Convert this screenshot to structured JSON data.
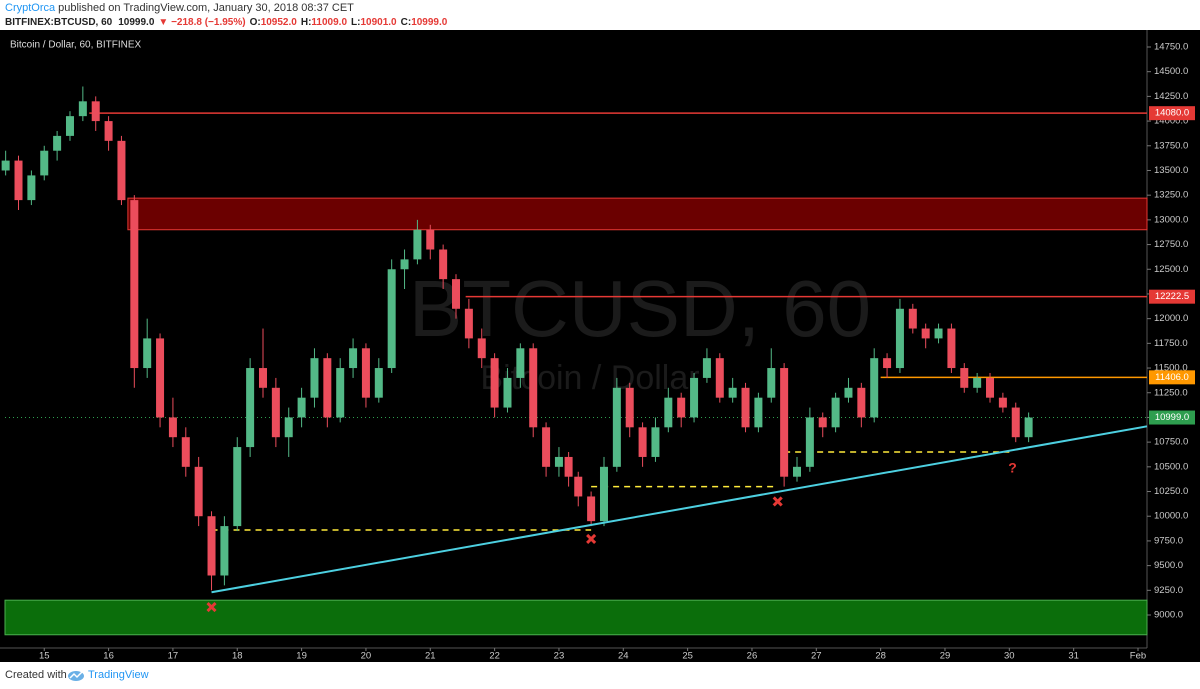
{
  "header": {
    "author": "CryptOrca",
    "published": "published on TradingView.com, January 30, 2018 08:37 CET",
    "symbol": "BITFINEX:BTCUSD, 60",
    "last": "10999.0",
    "change": "▼ −218.8 (−1.95%)",
    "ohlc": [
      {
        "label": "O:",
        "value": "10952.0"
      },
      {
        "label": "H:",
        "value": "11009.0"
      },
      {
        "label": "L:",
        "value": "10901.0"
      },
      {
        "label": "C:",
        "value": "10999.0"
      }
    ]
  },
  "chart_data": {
    "type": "candlestick",
    "title": "Bitcoin / Dollar, 60, BITFINEX",
    "watermark": "BTCUSD, 60",
    "watermark_sub": "Bitcoin / Dollar",
    "up_color": "#53b987",
    "down_color": "#eb4d5c",
    "x": [
      14.4,
      14.6,
      14.8,
      15.0,
      15.2,
      15.4,
      15.6,
      15.8,
      16.0,
      16.2,
      16.4,
      16.6,
      16.8,
      17.0,
      17.2,
      17.4,
      17.6,
      17.8,
      18.0,
      18.2,
      18.4,
      18.6,
      18.8,
      19.0,
      19.2,
      19.4,
      19.6,
      19.8,
      20.0,
      20.2,
      20.4,
      20.6,
      20.8,
      21.0,
      21.2,
      21.4,
      21.6,
      21.8,
      22.0,
      22.2,
      22.4,
      22.6,
      22.8,
      23.0,
      23.15,
      23.3,
      23.5,
      23.7,
      23.9,
      24.1,
      24.3,
      24.5,
      24.7,
      24.9,
      25.1,
      25.3,
      25.5,
      25.7,
      25.9,
      26.1,
      26.3,
      26.5,
      26.7,
      26.9,
      27.1,
      27.3,
      27.5,
      27.7,
      27.9,
      28.1,
      28.3,
      28.5,
      28.7,
      28.9,
      29.1,
      29.3,
      29.5,
      29.7,
      29.9,
      30.1,
      30.3
    ],
    "open": [
      13500,
      13600,
      13200,
      13450,
      13700,
      13850,
      14050,
      14200,
      14000,
      13800,
      13200,
      11500,
      11800,
      11000,
      10800,
      10500,
      10000,
      9400,
      9900,
      10700,
      11500,
      11300,
      10800,
      11000,
      11200,
      11600,
      11000,
      11500,
      11700,
      11200,
      11500,
      12500,
      12600,
      12900,
      12700,
      12400,
      12100,
      11800,
      11600,
      11100,
      11400,
      11700,
      10900,
      10500,
      10600,
      10400,
      10200,
      9950,
      10500,
      11300,
      10900,
      10600,
      10900,
      11200,
      11000,
      11400,
      11600,
      11200,
      11300,
      10900,
      11200,
      11500,
      10400,
      10500,
      11000,
      10900,
      11200,
      11300,
      11000,
      11600,
      11500,
      12100,
      11900,
      11800,
      11900,
      11500,
      11300,
      11400,
      11200,
      11100,
      10800
    ],
    "high": [
      13700,
      13650,
      13500,
      13750,
      13900,
      14100,
      14350,
      14250,
      14050,
      13850,
      13250,
      12000,
      11850,
      11200,
      10900,
      10600,
      10050,
      10000,
      10800,
      11600,
      11900,
      11400,
      11100,
      11300,
      11700,
      11650,
      11600,
      11800,
      11750,
      11600,
      12600,
      12700,
      13000,
      12950,
      12750,
      12450,
      12200,
      11900,
      11650,
      11500,
      11750,
      11750,
      10950,
      10700,
      10650,
      10450,
      10250,
      10600,
      11400,
      11350,
      10950,
      11000,
      11300,
      11250,
      11450,
      11700,
      11650,
      11400,
      11350,
      11250,
      11700,
      11550,
      10600,
      11100,
      11050,
      11250,
      11400,
      11350,
      11700,
      11650,
      12200,
      12150,
      11950,
      11950,
      11950,
      11550,
      11450,
      11450,
      11250,
      11150,
      11050
    ],
    "low": [
      13450,
      13100,
      13150,
      13400,
      13600,
      13800,
      14000,
      13900,
      13700,
      13150,
      11300,
      11400,
      10900,
      10700,
      10400,
      9900,
      9250,
      9300,
      9850,
      10600,
      11200,
      10700,
      10600,
      10900,
      11100,
      10900,
      10950,
      11400,
      11100,
      11150,
      11450,
      12300,
      12550,
      12600,
      12300,
      12000,
      11700,
      11500,
      11000,
      11050,
      11300,
      10800,
      10400,
      10400,
      10300,
      10100,
      9900,
      9900,
      10450,
      10800,
      10500,
      10550,
      10850,
      10900,
      10950,
      11350,
      11150,
      11150,
      10850,
      10850,
      11150,
      10300,
      10350,
      10450,
      10800,
      10850,
      11150,
      10900,
      10950,
      11400,
      11450,
      11850,
      11700,
      11750,
      11450,
      11250,
      11250,
      11150,
      11050,
      10750,
      10750
    ],
    "close": [
      13600,
      13200,
      13450,
      13700,
      13850,
      14050,
      14200,
      14000,
      13800,
      13200,
      11500,
      11800,
      11000,
      10800,
      10500,
      10000,
      9400,
      9900,
      10700,
      11500,
      11300,
      10800,
      11000,
      11200,
      11600,
      11000,
      11500,
      11700,
      11200,
      11500,
      12500,
      12600,
      12900,
      12700,
      12400,
      12100,
      11800,
      11600,
      11100,
      11400,
      11700,
      10900,
      10500,
      10600,
      10400,
      10200,
      9950,
      10500,
      11300,
      10900,
      10600,
      10900,
      11200,
      11000,
      11400,
      11600,
      11200,
      11300,
      10900,
      11200,
      11500,
      10400,
      10500,
      11000,
      10900,
      11200,
      11300,
      11000,
      11600,
      11500,
      12100,
      11900,
      11800,
      11900,
      11500,
      11300,
      11400,
      11200,
      11100,
      10800,
      10999
    ],
    "xlim": [
      14.39,
      32.14
    ],
    "ylim": [
      8666,
      14922
    ],
    "xticks": [
      15,
      16,
      17,
      18,
      19,
      20,
      21,
      22,
      23,
      24,
      25,
      26,
      27,
      28,
      29,
      30,
      31,
      {
        "value": 32,
        "label": "Feb"
      }
    ],
    "yticks": [
      {
        "value": 9000,
        "label": "9000.0"
      },
      {
        "value": 9250,
        "label": "9250.0"
      },
      {
        "value": 9500,
        "label": "9500.0"
      },
      {
        "value": 9750,
        "label": "9750.0"
      },
      {
        "value": 10000,
        "label": "10000.0"
      },
      {
        "value": 10250,
        "label": "10250.0"
      },
      {
        "value": 10500,
        "label": "10500.0"
      },
      {
        "value": 10750,
        "label": "10750.0"
      },
      {
        "value": 11000,
        "label": "11000.0"
      },
      {
        "value": 11250,
        "label": "11250.0"
      },
      {
        "value": 11500,
        "label": "11500.0"
      },
      {
        "value": 11750,
        "label": "11750.0"
      },
      {
        "value": 12000,
        "label": "12000.0"
      },
      {
        "value": 12250,
        "label": "12250.0"
      },
      {
        "value": 12500,
        "label": "12500.0"
      },
      {
        "value": 12750,
        "label": "12750.0"
      },
      {
        "value": 13000,
        "label": "13000.0"
      },
      {
        "value": 13250,
        "label": "13250.0"
      },
      {
        "value": 13500,
        "label": "13500.0"
      },
      {
        "value": 13750,
        "label": "13750.0"
      },
      {
        "value": 14000,
        "label": "14000.0"
      },
      {
        "value": 14250,
        "label": "14250.0"
      },
      {
        "value": 14500,
        "label": "14500.0"
      },
      {
        "value": 14750,
        "label": "14750.0"
      }
    ],
    "grid": false,
    "levels": [
      {
        "value": 14080,
        "label": "14080.0",
        "start": 15.7,
        "color": "#e53935"
      },
      {
        "value": 12222.5,
        "label": "12222.5",
        "start": 21.55,
        "color": "#e53935"
      },
      {
        "value": 11406,
        "label": "11406.0",
        "start": 28.0,
        "color": "#ff9800"
      },
      {
        "value": 10999,
        "label": "10999.0",
        "start": 14.39,
        "color": "#2e9e4f"
      }
    ],
    "zones": [
      {
        "start": 16.3,
        "from": 12900,
        "to": 13220,
        "color": "#6b0000",
        "edge": "#e53935"
      },
      {
        "start": 14.39,
        "from": 8800,
        "to": 9150,
        "color": "#0b6e0b",
        "edge": "#4caf50"
      }
    ],
    "supports": [
      {
        "from": 17.6,
        "to": 23.5,
        "value": 9860
      },
      {
        "from": 23.5,
        "to": 26.4,
        "value": 10300
      },
      {
        "from": 26.5,
        "to": 30.0,
        "value": 10650
      }
    ],
    "trendline": {
      "x": [
        17.6,
        32.14
      ],
      "values": [
        9230,
        10910
      ],
      "color": "#4dd0e1"
    },
    "markers": {
      "x": [
        17.6,
        23.5,
        26.4
      ],
      "values": [
        9080,
        9770,
        10150
      ],
      "color": "#e53935"
    },
    "question": {
      "text": "?",
      "x": 30.05,
      "value": 10480
    }
  },
  "footer": {
    "created": "Created with",
    "brand": "TradingView"
  }
}
